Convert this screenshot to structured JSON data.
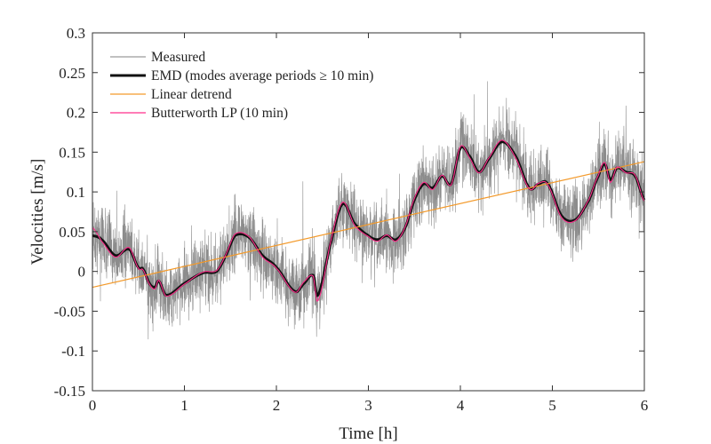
{
  "chart_data": {
    "type": "line",
    "title": "",
    "xlabel": "Time [h]",
    "ylabel": "Velocities [m/s]",
    "xlim": [
      0,
      6
    ],
    "ylim": [
      -0.15,
      0.3
    ],
    "xticks": [
      0,
      1,
      2,
      3,
      4,
      5,
      6
    ],
    "xtick_labels": [
      "0",
      "1",
      "2",
      "3",
      "4",
      "5",
      "6"
    ],
    "yticks": [
      -0.15,
      -0.1,
      -0.05,
      0,
      0.05,
      0.1,
      0.15,
      0.2,
      0.25,
      0.3
    ],
    "ytick_labels": [
      "-0.15",
      "-0.1",
      "-0.05",
      "0",
      "0.05",
      "0.1",
      "0.15",
      "0.2",
      "0.25",
      "0.3"
    ],
    "grid": false,
    "legend_position": "top-left",
    "series": [
      {
        "name": "Measured",
        "color": "#808080",
        "note_values": "high-frequency noisy signal around EMD curve"
      },
      {
        "name": "EMD (modes average periods ≥ 10 min)",
        "color": "#111111",
        "x": [
          0,
          0.1,
          0.25,
          0.4,
          0.5,
          0.55,
          0.62,
          0.68,
          0.72,
          0.8,
          1.0,
          1.2,
          1.35,
          1.45,
          1.55,
          1.7,
          1.85,
          2.0,
          2.2,
          2.3,
          2.4,
          2.45,
          2.6,
          2.72,
          2.85,
          3.0,
          3.1,
          3.2,
          3.3,
          3.4,
          3.5,
          3.6,
          3.7,
          3.8,
          3.9,
          4.0,
          4.1,
          4.2,
          4.3,
          4.45,
          4.6,
          4.75,
          4.85,
          4.95,
          5.1,
          5.25,
          5.4,
          5.5,
          5.57,
          5.63,
          5.7,
          5.8,
          5.9,
          6.0
        ],
        "y": [
          0.045,
          0.04,
          0.02,
          0.028,
          0.005,
          0.003,
          -0.015,
          -0.02,
          -0.012,
          -0.03,
          -0.015,
          -0.002,
          0,
          0.02,
          0.045,
          0.043,
          0.02,
          0.005,
          -0.025,
          -0.015,
          -0.005,
          -0.03,
          0.04,
          0.085,
          0.06,
          0.045,
          0.04,
          0.045,
          0.04,
          0.055,
          0.09,
          0.11,
          0.105,
          0.12,
          0.11,
          0.155,
          0.145,
          0.125,
          0.14,
          0.163,
          0.145,
          0.105,
          0.11,
          0.11,
          0.07,
          0.065,
          0.09,
          0.12,
          0.135,
          0.115,
          0.13,
          0.125,
          0.12,
          0.09
        ]
      },
      {
        "name": "Linear detrend",
        "color": "#f39a2b",
        "x": [
          0,
          6
        ],
        "y": [
          -0.02,
          0.138
        ]
      },
      {
        "name": "Butterworth LP (10 min)",
        "color": "#ff2e8c",
        "x": [
          0,
          0.1,
          0.25,
          0.4,
          0.5,
          0.55,
          0.62,
          0.68,
          0.72,
          0.8,
          1.0,
          1.2,
          1.35,
          1.45,
          1.55,
          1.7,
          1.85,
          2.0,
          2.2,
          2.3,
          2.4,
          2.45,
          2.6,
          2.72,
          2.85,
          3.0,
          3.1,
          3.2,
          3.3,
          3.4,
          3.5,
          3.6,
          3.7,
          3.8,
          3.9,
          4.0,
          4.1,
          4.2,
          4.3,
          4.45,
          4.6,
          4.75,
          4.85,
          4.95,
          5.1,
          5.25,
          5.4,
          5.5,
          5.57,
          5.63,
          5.7,
          5.8,
          5.9,
          6.0
        ],
        "y": [
          0.055,
          0.038,
          0.018,
          0.03,
          0.004,
          0.002,
          -0.016,
          -0.022,
          -0.011,
          -0.031,
          -0.016,
          -0.001,
          0.001,
          0.021,
          0.047,
          0.044,
          0.018,
          0.004,
          -0.026,
          -0.013,
          -0.006,
          -0.037,
          0.042,
          0.087,
          0.058,
          0.044,
          0.038,
          0.046,
          0.038,
          0.056,
          0.092,
          0.112,
          0.103,
          0.121,
          0.109,
          0.157,
          0.143,
          0.124,
          0.141,
          0.165,
          0.143,
          0.104,
          0.111,
          0.109,
          0.068,
          0.064,
          0.091,
          0.121,
          0.137,
          0.112,
          0.131,
          0.124,
          0.121,
          0.088
        ]
      }
    ]
  }
}
